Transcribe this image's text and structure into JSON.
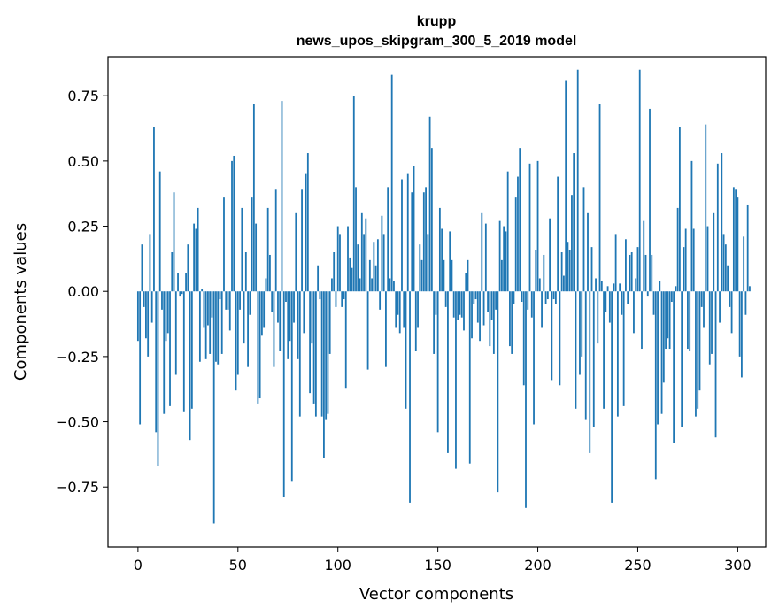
{
  "chart_data": {
    "type": "bar",
    "title": "krupp",
    "subtitle": "news_upos_skipgram_300_5_2019 model",
    "xlabel": "Vector components",
    "ylabel": "Components values",
    "xlim": [
      -15,
      314
    ],
    "ylim": [
      -0.98,
      0.9
    ],
    "xticks": [
      0,
      50,
      100,
      150,
      200,
      250,
      300
    ],
    "xtick_labels": [
      "0",
      "50",
      "100",
      "150",
      "200",
      "250",
      "300"
    ],
    "yticks": [
      -0.75,
      -0.5,
      -0.25,
      0.0,
      0.25,
      0.5,
      0.75
    ],
    "ytick_labels": [
      "−0.75",
      "−0.50",
      "−0.25",
      "0.00",
      "0.25",
      "0.50",
      "0.75"
    ],
    "bar_color": "#1f77b4",
    "grid": false,
    "values": [
      -0.19,
      -0.51,
      0.18,
      -0.06,
      -0.18,
      -0.25,
      0.22,
      -0.12,
      0.63,
      -0.54,
      -0.67,
      0.46,
      -0.07,
      -0.47,
      -0.19,
      -0.16,
      -0.44,
      0.15,
      0.38,
      -0.32,
      0.07,
      -0.02,
      -0.01,
      -0.46,
      0.07,
      0.18,
      -0.57,
      -0.45,
      0.26,
      0.24,
      0.32,
      -0.27,
      0.01,
      -0.14,
      -0.26,
      -0.13,
      -0.24,
      -0.1,
      -0.89,
      -0.27,
      -0.28,
      -0.03,
      -0.24,
      0.36,
      -0.07,
      -0.07,
      -0.15,
      0.5,
      0.52,
      -0.38,
      -0.32,
      -0.07,
      0.32,
      -0.2,
      0.15,
      -0.29,
      -0.09,
      0.36,
      0.72,
      0.26,
      -0.43,
      -0.41,
      -0.17,
      -0.14,
      0.05,
      0.32,
      0.14,
      -0.08,
      -0.29,
      0.39,
      -0.12,
      -0.23,
      0.73,
      -0.79,
      -0.04,
      -0.26,
      -0.19,
      -0.73,
      -0.12,
      0.3,
      -0.26,
      -0.48,
      0.39,
      -0.16,
      0.45,
      0.53,
      -0.39,
      -0.2,
      -0.43,
      -0.48,
      0.1,
      -0.03,
      -0.48,
      -0.64,
      -0.49,
      -0.47,
      -0.24,
      0.05,
      0.15,
      -0.06,
      0.25,
      0.22,
      -0.06,
      -0.03,
      -0.37,
      0.25,
      0.13,
      0.09,
      0.75,
      0.4,
      0.18,
      0.05,
      0.3,
      0.22,
      0.28,
      -0.3,
      0.12,
      0.05,
      0.19,
      0.1,
      0.2,
      -0.07,
      0.29,
      0.22,
      -0.29,
      0.4,
      0.05,
      0.83,
      0.04,
      -0.14,
      -0.09,
      -0.16,
      0.43,
      -0.14,
      -0.45,
      0.45,
      -0.81,
      0.38,
      0.48,
      -0.23,
      -0.14,
      0.18,
      0.12,
      0.38,
      0.4,
      0.22,
      0.67,
      0.55,
      -0.24,
      -0.09,
      -0.54,
      0.32,
      0.24,
      0.12,
      -0.06,
      -0.62,
      0.23,
      0.12,
      -0.1,
      -0.68,
      -0.11,
      -0.09,
      -0.1,
      -0.15,
      0.07,
      0.12,
      -0.66,
      -0.18,
      -0.05,
      -0.03,
      -0.12,
      -0.19,
      0.3,
      -0.13,
      0.26,
      -0.08,
      -0.21,
      -0.11,
      -0.24,
      -0.07,
      -0.77,
      0.27,
      0.12,
      0.25,
      0.23,
      0.46,
      -0.21,
      -0.24,
      -0.05,
      0.36,
      0.44,
      0.55,
      -0.04,
      -0.36,
      -0.83,
      -0.07,
      0.49,
      -0.1,
      -0.51,
      0.16,
      0.5,
      0.05,
      -0.14,
      0.14,
      -0.05,
      -0.03,
      0.28,
      -0.34,
      -0.03,
      -0.05,
      0.44,
      -0.36,
      0.15,
      0.06,
      0.81,
      0.19,
      0.16,
      0.37,
      0.53,
      -0.45,
      0.85,
      -0.32,
      -0.25,
      0.4,
      -0.49,
      0.3,
      -0.62,
      0.17,
      -0.52,
      0.05,
      -0.2,
      0.72,
      0.04,
      -0.45,
      -0.08,
      0.02,
      -0.12,
      -0.81,
      0.03,
      0.22,
      -0.48,
      0.03,
      -0.09,
      -0.44,
      0.2,
      -0.05,
      0.14,
      0.15,
      -0.16,
      0.05,
      0.17,
      0.85,
      -0.22,
      0.27,
      0.14,
      -0.02,
      0.7,
      0.14,
      -0.09,
      -0.72,
      -0.51,
      0.04,
      -0.47,
      -0.35,
      -0.22,
      -0.18,
      -0.22,
      -0.04,
      -0.58,
      0.02,
      0.32,
      0.63,
      -0.52,
      0.17,
      0.24,
      -0.22,
      -0.23,
      0.5,
      0.24,
      -0.48,
      -0.45,
      -0.38,
      -0.06,
      -0.14,
      0.64,
      0.25,
      -0.28,
      -0.24,
      0.3,
      -0.56,
      0.49,
      -0.12,
      0.53,
      0.22,
      0.18,
      0.1,
      -0.06,
      -0.16,
      0.4,
      0.39,
      0.36,
      -0.25,
      -0.33,
      0.21,
      -0.09,
      0.33,
      0.02
    ]
  }
}
